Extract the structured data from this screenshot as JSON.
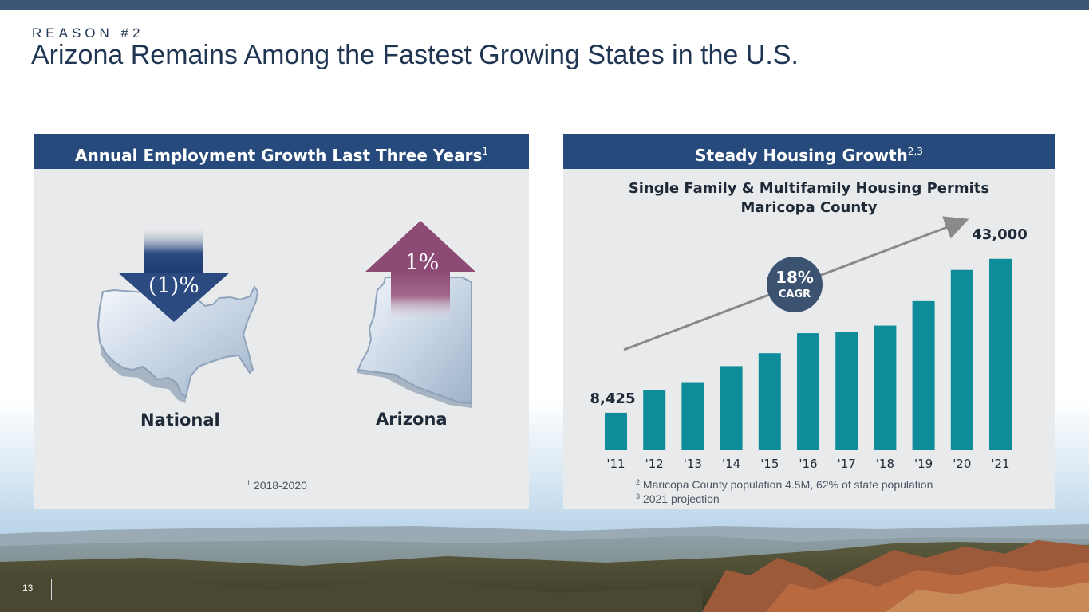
{
  "header": {
    "eyebrow": "REASON #2",
    "title": "Arizona Remains Among the Fastest Growing States in the U.S."
  },
  "left_panel": {
    "heading": "Annual Employment Growth Last Three Years",
    "heading_note": "1",
    "national": {
      "label": "National",
      "value": "(1)%"
    },
    "arizona": {
      "label": "Arizona",
      "value": "1%"
    },
    "footnote_mark": "1",
    "footnote": "2018-2020"
  },
  "right_panel": {
    "heading": "Steady Housing Growth",
    "heading_note": "2,3",
    "chart_title_line1": "Single Family & Multifamily Housing Permits",
    "chart_title_line2": "Maricopa County",
    "cagr_value": "18%",
    "cagr_label": "CAGR",
    "first_label": "8,425",
    "last_label": "43,000",
    "footnote2_mark": "2",
    "footnote2": "Maricopa County population 4.5M, 62% of state population",
    "footnote3_mark": "3",
    "footnote3": "2021 projection"
  },
  "chart_data": {
    "type": "bar",
    "title": "Single Family & Multifamily Housing Permits Maricopa County",
    "categories": [
      "'11",
      "'12",
      "'13",
      "'14",
      "'15",
      "'16",
      "'17",
      "'18",
      "'19",
      "'20",
      "'21"
    ],
    "values": [
      8425,
      13500,
      15300,
      18900,
      21800,
      26300,
      26500,
      28000,
      33500,
      40500,
      43000
    ],
    "ylim": [
      0,
      46000
    ],
    "bar_color": "#0f8c9a",
    "grid": false
  },
  "colors": {
    "header_blue": "#264a7c",
    "bar_teal": "#0f8c9a",
    "down_arrow": "#2a4a80",
    "up_arrow": "#8c4a74",
    "cagr_badge": "#3b5270"
  },
  "footer": {
    "page_number": "13"
  }
}
